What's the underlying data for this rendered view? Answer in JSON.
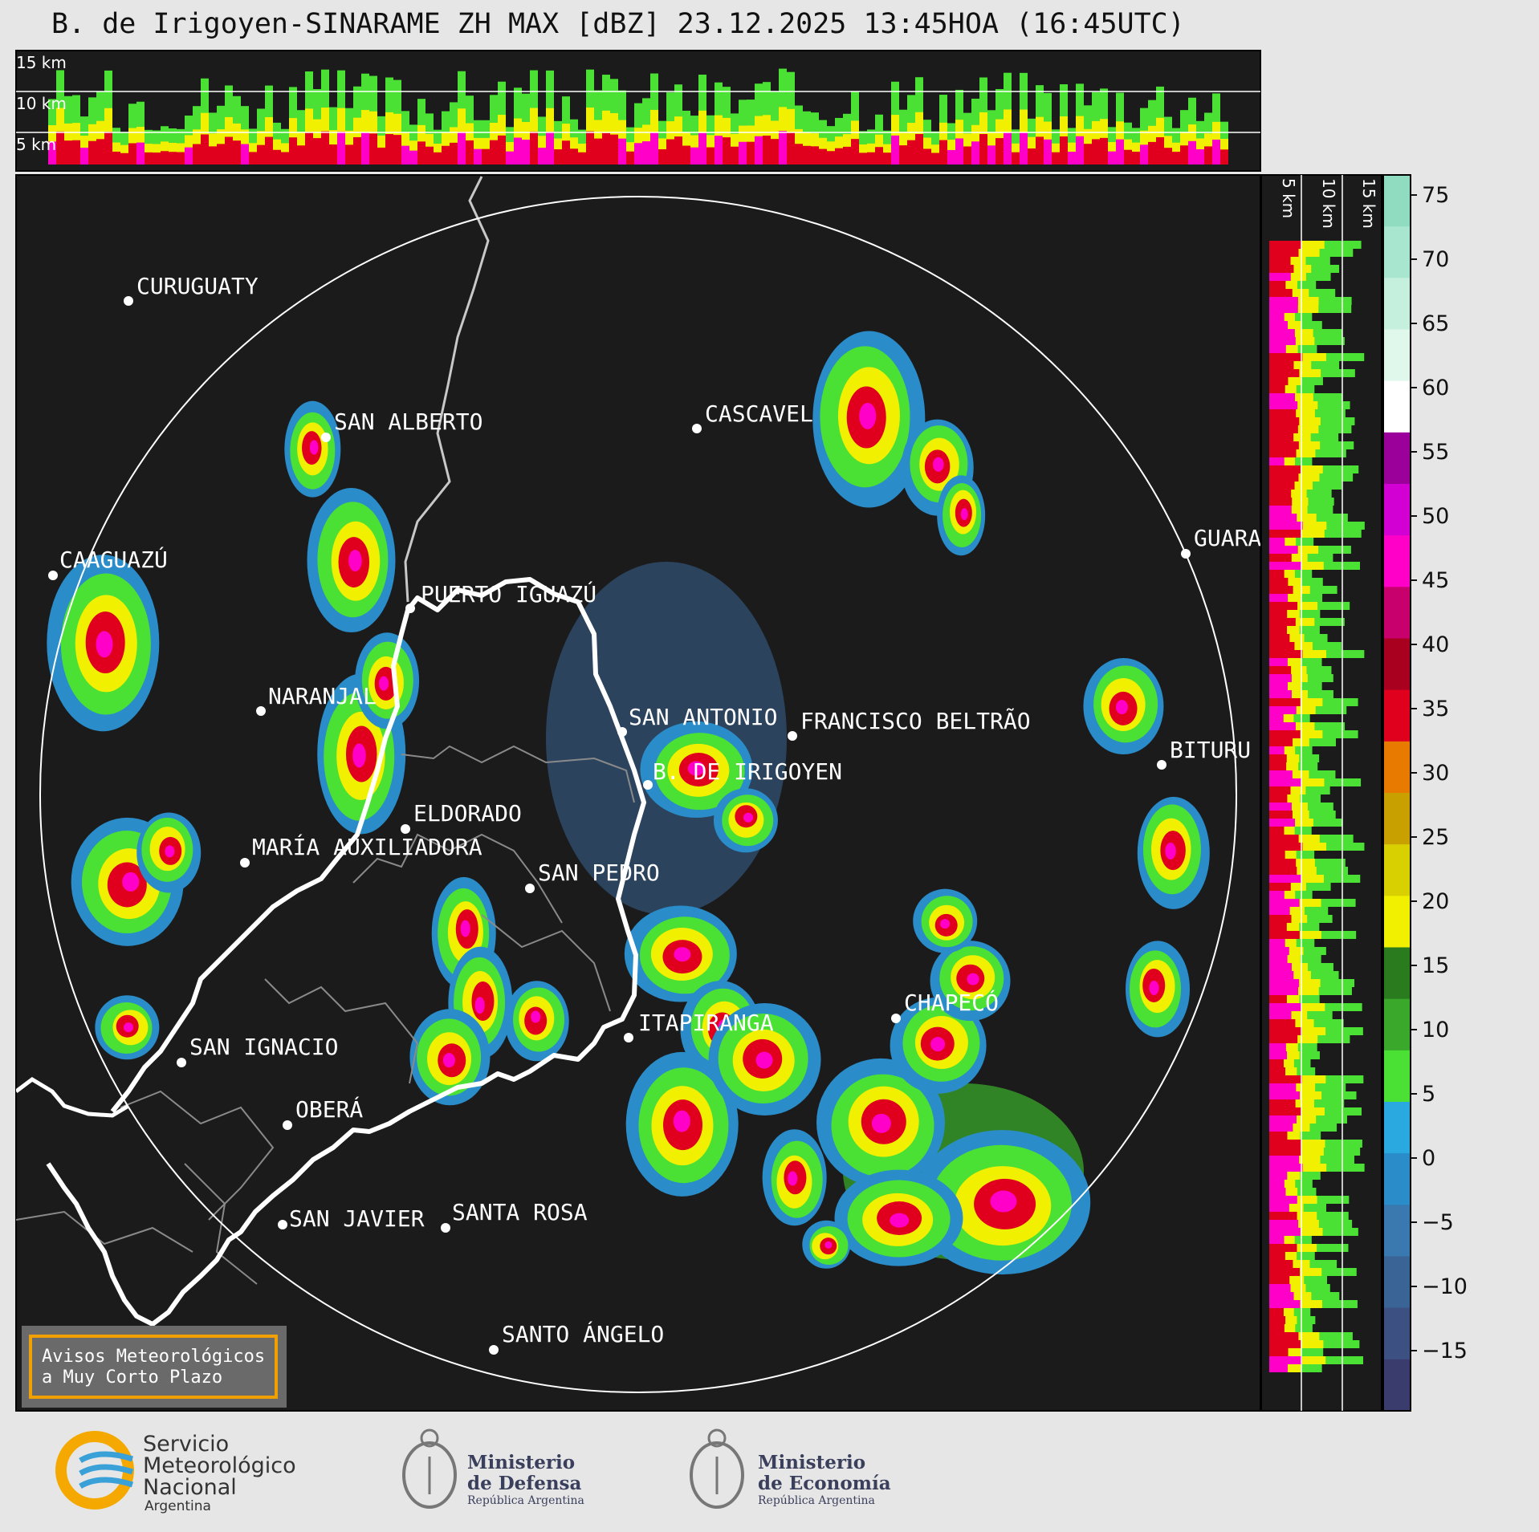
{
  "title": "B. de Irigoyen-SINARAME ZH MAX [dBZ] 23.12.2025 13:45HOA (16:45UTC)",
  "cross_section_labels": [
    "15 km",
    "10 km",
    "5 km"
  ],
  "side_section_labels": [
    "5 km",
    "10 km",
    "15 km"
  ],
  "colorbar": {
    "ticks": [
      "75",
      "70",
      "65",
      "60",
      "55",
      "50",
      "45",
      "40",
      "35",
      "30",
      "25",
      "20",
      "15",
      "10",
      "5",
      "0",
      "−5",
      "−10",
      "−15"
    ],
    "colors": [
      "#8fdcc0",
      "#a8e6cf",
      "#c4f0dd",
      "#e0f7ec",
      "#ffffff",
      "#9b009b",
      "#d200d2",
      "#ff00c8",
      "#c8006e",
      "#a8001e",
      "#e0001e",
      "#e87a00",
      "#c8a000",
      "#d8d000",
      "#f0f000",
      "#2a7a1e",
      "#3aa82a",
      "#4ae034",
      "#2aa8e0",
      "#2a8cc8",
      "#3a78b0",
      "#3a6496",
      "#3c5082",
      "#3a3c6e"
    ]
  },
  "cities": [
    {
      "name": "CURUGUATY"
    },
    {
      "name": "SAN ALBERTO"
    },
    {
      "name": "CASCAVEL"
    },
    {
      "name": "CAAGUAZÚ"
    },
    {
      "name": "GUARA"
    },
    {
      "name": "PUERTO IGUAZÚ"
    },
    {
      "name": "NARANJAL"
    },
    {
      "name": "SAN ANTONIO"
    },
    {
      "name": "FRANCISCO BELTRÃO"
    },
    {
      "name": "BITURU"
    },
    {
      "name": "B. DE IRIGOYEN"
    },
    {
      "name": "ELDORADO"
    },
    {
      "name": "MARÍA AUXILIADORA"
    },
    {
      "name": "SAN PEDRO"
    },
    {
      "name": "CHAPECÓ"
    },
    {
      "name": "ITAPIRANGA"
    },
    {
      "name": "SAN IGNACIO"
    },
    {
      "name": "OBERÁ"
    },
    {
      "name": "SAN JAVIER"
    },
    {
      "name": "SANTA ROSA"
    },
    {
      "name": "SANTO ÁNGELO"
    }
  ],
  "warning_box": {
    "line1": "Avisos Meteorológicos",
    "line2": "a Muy Corto Plazo"
  },
  "logos": {
    "smn": {
      "line1": "Servicio",
      "line2": "Meteorológico",
      "line3": "Nacional",
      "line4": "Argentina"
    },
    "defensa": {
      "line1": "Ministerio",
      "line2": "de Defensa",
      "line3": "República Argentina"
    },
    "economia": {
      "line1": "Ministerio",
      "line2": "de Economía",
      "line3": "República Argentina"
    }
  }
}
